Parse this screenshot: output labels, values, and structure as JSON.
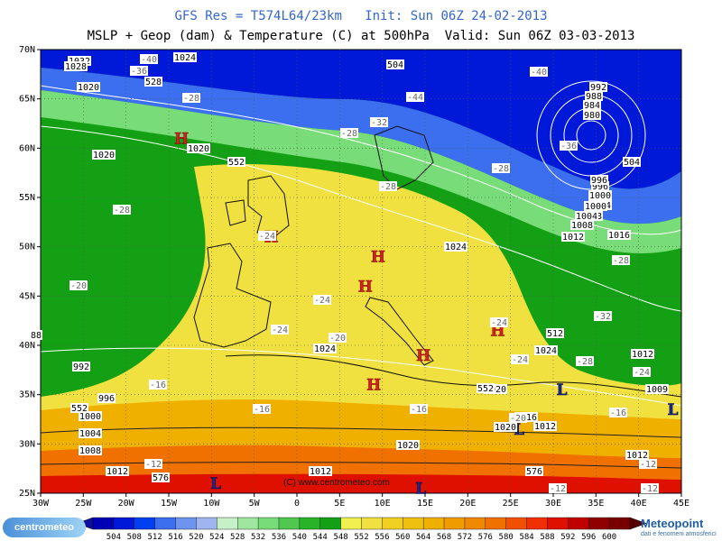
{
  "header": {
    "line1": "GFS Res = T574L64/23km   Init: Sun 06Z 24-02-2013",
    "line2": "MSLP + Geop (dam) & Temperature (C) at 500hPa  Valid: Sun 06Z 03-03-2013"
  },
  "map": {
    "lon_labels": [
      "30W",
      "25W",
      "20W",
      "15W",
      "10W",
      "5W",
      "0",
      "5E",
      "10E",
      "15E",
      "20E",
      "25E",
      "30E",
      "35E",
      "40E",
      "45E"
    ],
    "lat_labels": [
      "70N",
      "65N",
      "60N",
      "55N",
      "50N",
      "45N",
      "40N",
      "35N",
      "30N",
      "25N"
    ],
    "copyright": "(C) www.centrometeo.com",
    "pressure_labels": [
      "1032",
      "1028",
      "1024",
      "1020",
      "1020",
      "1020",
      "1024",
      "1024",
      "1020",
      "1012",
      "1008",
      "1004",
      "1000",
      "996",
      "992",
      "988",
      "984",
      "980",
      "996",
      "1000",
      "1004",
      "1008",
      "1012",
      "1016",
      "1012",
      "1020",
      "1016",
      "1020",
      "1012",
      "1012",
      "1009",
      "1008",
      "1004",
      "1000",
      "996",
      "992",
      "1024",
      "1012",
      "88"
    ],
    "geop_labels": [
      "504",
      "528",
      "552",
      "552",
      "552",
      "576",
      "576",
      "504",
      "512"
    ],
    "temp_labels": [
      "-40",
      "-36",
      "-28",
      "-40",
      "-44",
      "-32",
      "-28",
      "-28",
      "-28",
      "-24",
      "-24",
      "-24",
      "-20",
      "-20",
      "-16",
      "-16",
      "-16",
      "-12",
      "-12",
      "-28",
      "-32",
      "-24",
      "-24",
      "-28",
      "-24",
      "-16",
      "-12",
      "-12",
      "-20",
      "-36",
      "-28"
    ],
    "pressure_centers": [
      {
        "type": "H",
        "lon": -13.5,
        "lat": 61.0
      },
      {
        "type": "H",
        "lon": -3.0,
        "lat": 51.0
      },
      {
        "type": "H",
        "lon": 9.5,
        "lat": 49.0
      },
      {
        "type": "H",
        "lon": 8.0,
        "lat": 46.0
      },
      {
        "type": "H",
        "lon": 14.8,
        "lat": 39.0
      },
      {
        "type": "H",
        "lon": 9.0,
        "lat": 36.0
      },
      {
        "type": "H",
        "lon": 23.5,
        "lat": 41.5
      },
      {
        "type": "L",
        "lon": 31.0,
        "lat": 35.5
      },
      {
        "type": "L",
        "lon": 44.0,
        "lat": 33.5
      },
      {
        "type": "L",
        "lon": 26.0,
        "lat": 31.5
      },
      {
        "type": "L",
        "lon": 14.5,
        "lat": 25.5
      },
      {
        "type": "L",
        "lon": -9.5,
        "lat": 26.0
      }
    ]
  },
  "colorbar": {
    "values": [
      "504",
      "508",
      "512",
      "516",
      "520",
      "524",
      "528",
      "532",
      "536",
      "540",
      "544",
      "548",
      "552",
      "556",
      "560",
      "564",
      "568",
      "572",
      "576",
      "580",
      "584",
      "588",
      "592",
      "596",
      "600"
    ],
    "colors": [
      "#0000b4",
      "#0018d8",
      "#0040f0",
      "#3c6ef0",
      "#6e94f0",
      "#a0b4f0",
      "#c8f0c8",
      "#a0e6a0",
      "#78dc78",
      "#50c850",
      "#28b428",
      "#14a014",
      "#f0f050",
      "#f0e040",
      "#f0d020",
      "#f0c010",
      "#f0b000",
      "#f09c00",
      "#f08800",
      "#f07000",
      "#f05000",
      "#f03000",
      "#e01000",
      "#c00000",
      "#900000",
      "#780000"
    ],
    "under_color": "#1010a0",
    "over_color": "#580000"
  },
  "branding": {
    "left_logo": "centrometeo",
    "right_logo": "Meteopoint",
    "right_tagline": "dati e fenomeni atmosferici"
  }
}
